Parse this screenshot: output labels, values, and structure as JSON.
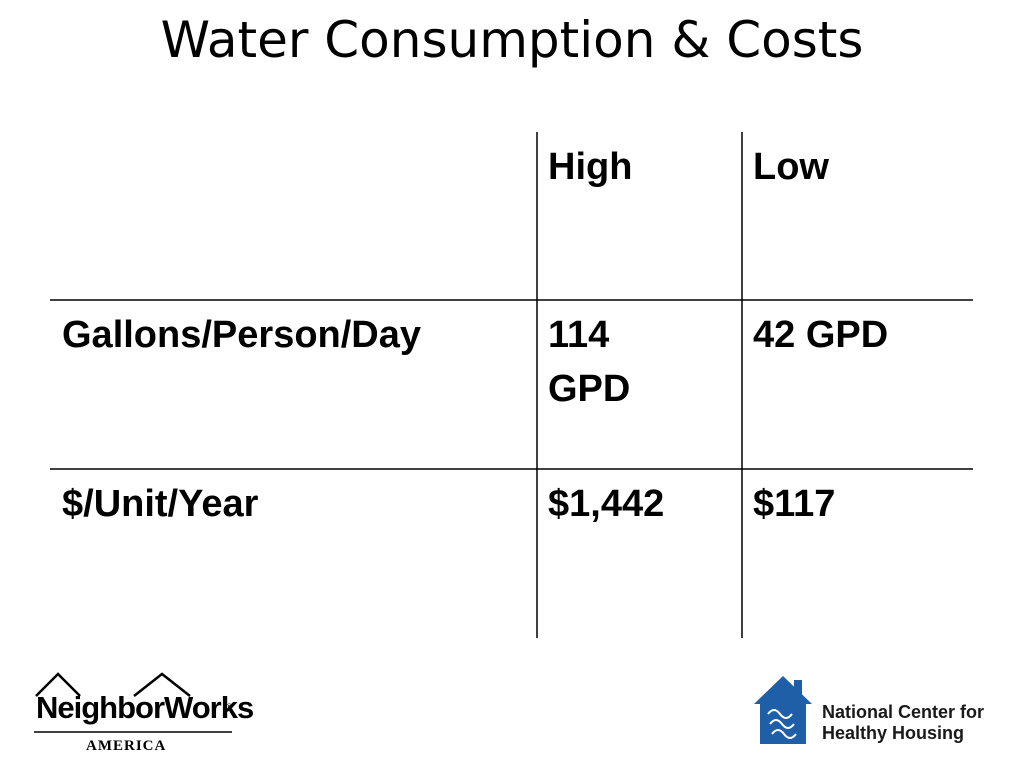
{
  "title": "Water Consumption & Costs",
  "table": {
    "headers": [
      "",
      "High",
      "Low"
    ],
    "rows": [
      {
        "label": "Gallons/Person/Day",
        "high_line1": "114",
        "high_line2": "GPD",
        "low": "42 GPD"
      },
      {
        "label": "$/Unit/Year",
        "high_line1": "$1,442",
        "low": "$117"
      }
    ]
  },
  "logos": {
    "neighborworks": {
      "name": "NeighborWorks",
      "registered": "®",
      "sub": "AMERICA"
    },
    "nchh": {
      "line1": "National Center for",
      "line2": "Healthy Housing",
      "brand_color": "#1f5fa8"
    }
  }
}
